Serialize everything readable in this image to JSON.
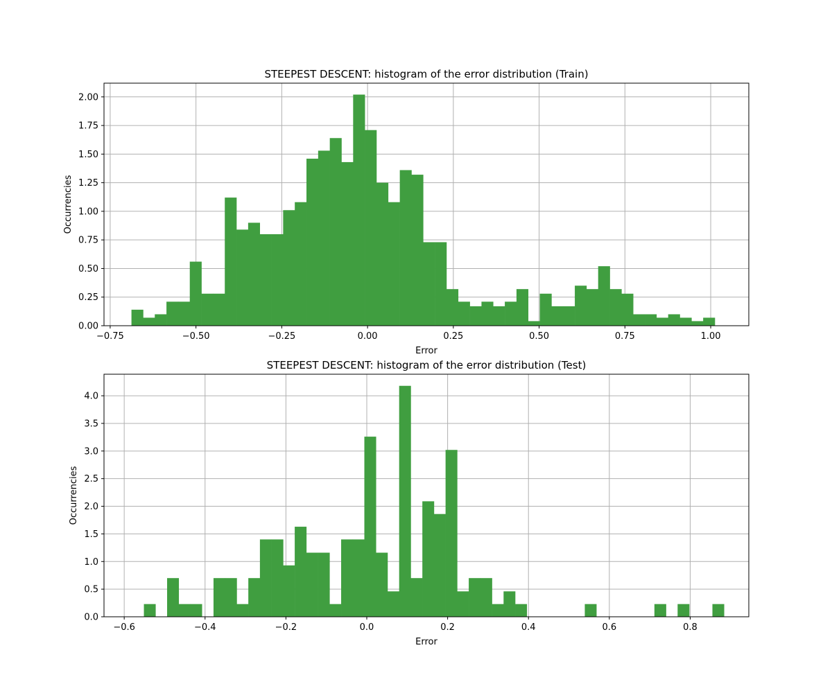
{
  "chart_data": [
    {
      "type": "bar",
      "title": "STEEPEST DESCENT: histogram of the error distribution (Train)",
      "xlabel": "Error",
      "ylabel": "Occurrencies",
      "xlim": [
        -0.768,
        1.111
      ],
      "ylim": [
        0,
        2.12
      ],
      "x_ticks": [
        -0.75,
        -0.5,
        -0.25,
        0.0,
        0.25,
        0.5,
        0.75,
        1.0
      ],
      "x_tick_labels": [
        "−0.75",
        "−0.50",
        "−0.25",
        "0.00",
        "0.25",
        "0.50",
        "0.75",
        "1.00"
      ],
      "y_ticks": [
        0,
        0.25,
        0.5,
        0.75,
        1.0,
        1.25,
        1.5,
        1.75,
        2.0
      ],
      "y_tick_labels": [
        "0.00",
        "0.25",
        "0.50",
        "0.75",
        "1.00",
        "1.25",
        "1.50",
        "1.75",
        "2.00"
      ],
      "grid": true,
      "bar_color": "#409e40",
      "bin_start": -0.688,
      "bin_width": 0.034,
      "values": [
        0.14,
        0.07,
        0.1,
        0.21,
        0.21,
        0.56,
        0.28,
        0.28,
        1.12,
        0.84,
        0.9,
        0.8,
        0.8,
        1.01,
        1.08,
        1.46,
        1.53,
        1.64,
        1.43,
        2.02,
        1.71,
        1.25,
        1.08,
        1.36,
        1.32,
        0.73,
        0.73,
        0.32,
        0.21,
        0.17,
        0.21,
        0.17,
        0.21,
        0.32,
        0.04,
        0.28,
        0.17,
        0.17,
        0.35,
        0.32,
        0.52,
        0.32,
        0.28,
        0.1,
        0.1,
        0.07,
        0.1,
        0.07,
        0.04,
        0.07
      ]
    },
    {
      "type": "bar",
      "title": "STEEPEST DESCENT: histogram of the error distribution (Test)",
      "xlabel": "Error",
      "ylabel": "Occurrencies",
      "xlim": [
        -0.65,
        0.945
      ],
      "ylim": [
        0,
        4.39
      ],
      "x_ticks": [
        -0.6,
        -0.4,
        -0.2,
        0.0,
        0.2,
        0.4,
        0.6,
        0.8
      ],
      "x_tick_labels": [
        "−0.6",
        "−0.4",
        "−0.2",
        "0.0",
        "0.2",
        "0.4",
        "0.6",
        "0.8"
      ],
      "y_ticks": [
        0,
        0.5,
        1.0,
        1.5,
        2.0,
        2.5,
        3.0,
        3.5,
        4.0
      ],
      "y_tick_labels": [
        "0.0",
        "0.5",
        "1.0",
        "1.5",
        "2.0",
        "2.5",
        "3.0",
        "3.5",
        "4.0"
      ],
      "grid": true,
      "bar_color": "#409e40",
      "bin_start": -0.58,
      "bin_width": 0.0287,
      "values": [
        0,
        0.23,
        0,
        0.7,
        0.23,
        0.23,
        0,
        0.7,
        0.7,
        0.23,
        0.7,
        1.4,
        1.4,
        0.93,
        1.63,
        1.16,
        1.16,
        0.23,
        1.4,
        1.4,
        3.26,
        1.16,
        0.46,
        4.18,
        0.7,
        2.09,
        1.86,
        3.02,
        0.46,
        0.7,
        0.7,
        0.23,
        0.46,
        0.23,
        0,
        0,
        0,
        0,
        0,
        0.23,
        0,
        0,
        0,
        0,
        0,
        0.23,
        0,
        0.23,
        0,
        0,
        0.23
      ]
    }
  ]
}
